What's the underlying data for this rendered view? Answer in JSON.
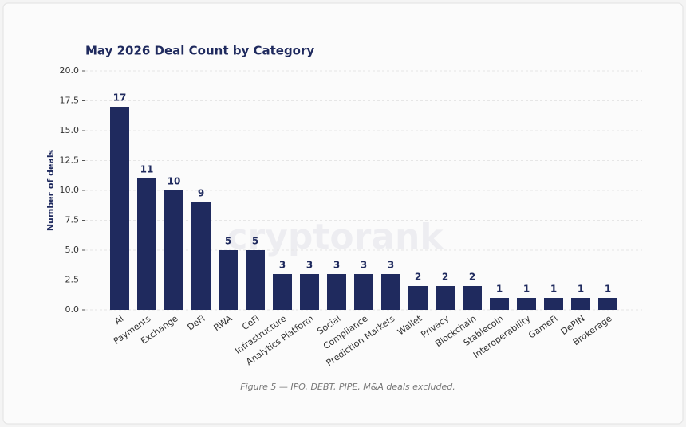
{
  "chart_data": {
    "type": "bar",
    "title": "May 2026 Deal Count by Category",
    "ylabel": "Number of deals",
    "categories": [
      "AI",
      "Payments",
      "Exchange",
      "DeFi",
      "RWA",
      "CeFi",
      "Infrastructure",
      "Analytics Platform",
      "Social",
      "Compliance",
      "Prediction Markets",
      "Wallet",
      "Privacy",
      "Blockchain",
      "Stablecoin",
      "Interoperability",
      "GameFi",
      "DePIN",
      "Brokerage"
    ],
    "values": [
      17,
      11,
      10,
      9,
      5,
      5,
      3,
      3,
      3,
      3,
      3,
      2,
      2,
      2,
      1,
      1,
      1,
      1,
      1
    ],
    "color": "#1f2a5e",
    "ylim": [
      0,
      20
    ],
    "yticks": [
      {
        "value": 0,
        "label": "0.0"
      },
      {
        "value": 2.5,
        "label": "2.5"
      },
      {
        "value": 5,
        "label": "5.0"
      },
      {
        "value": 7.5,
        "label": "7.5"
      },
      {
        "value": 10,
        "label": "10.0"
      },
      {
        "value": 12.5,
        "label": "12.5"
      },
      {
        "value": 15,
        "label": "15.0"
      },
      {
        "value": 17.5,
        "label": "17.5"
      },
      {
        "value": 20,
        "label": "20.0"
      }
    ],
    "grid": true,
    "watermark": "cryptorank",
    "caption": "Figure 5 — IPO, DEBT, PIPE, M&A deals excluded."
  }
}
